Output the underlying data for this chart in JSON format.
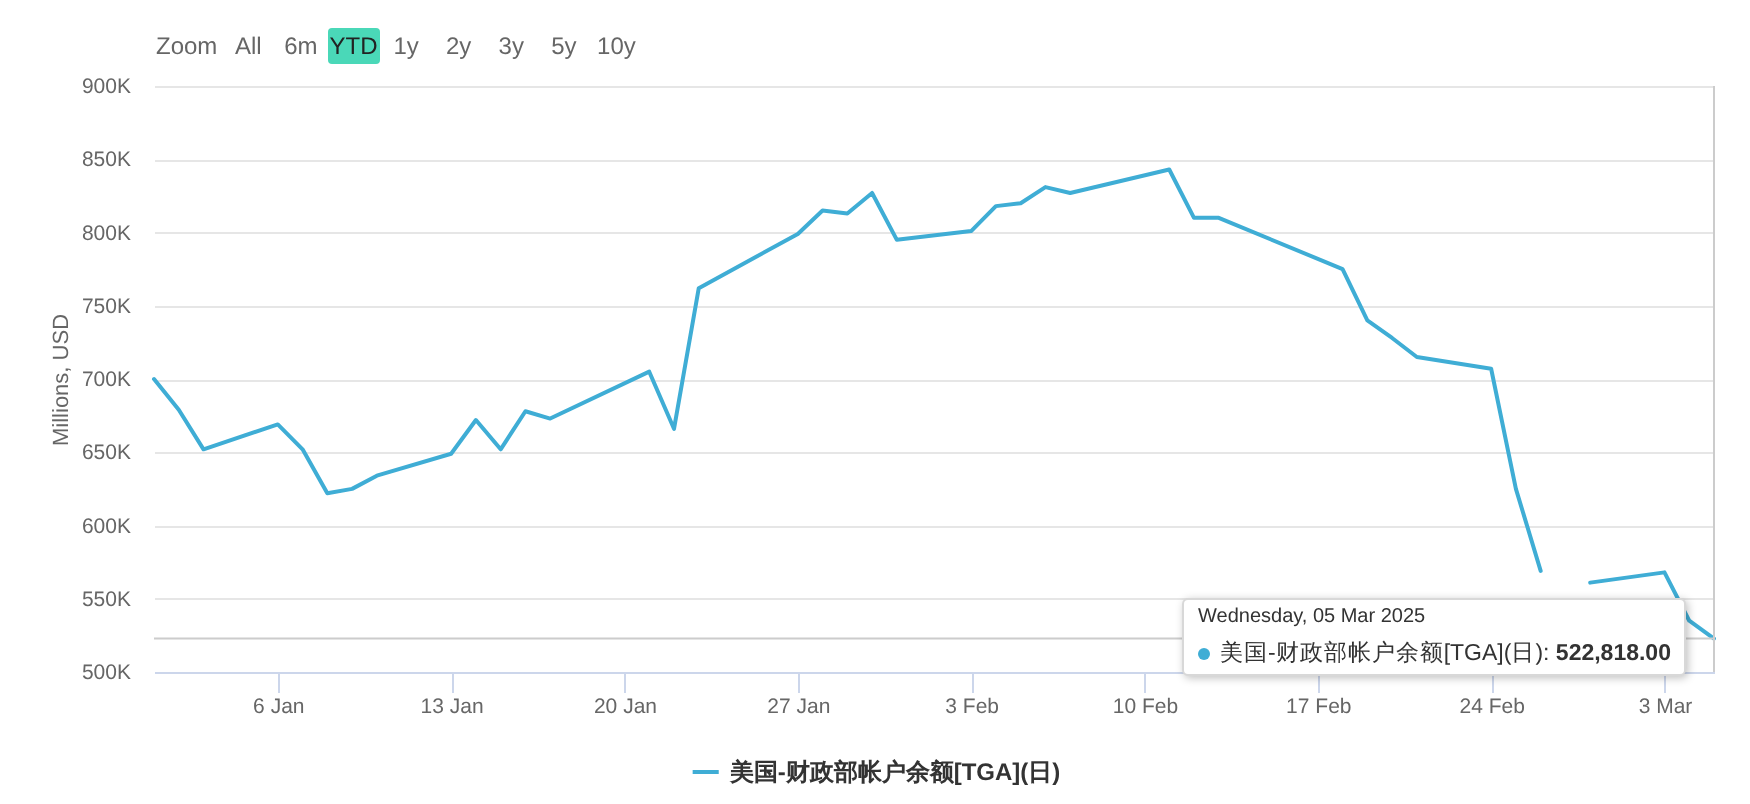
{
  "chart_data": {
    "type": "line",
    "ylabel": "Millions, USD",
    "x": [
      "2025-01-01",
      "2025-01-02",
      "2025-01-03",
      "2025-01-06",
      "2025-01-07",
      "2025-01-08",
      "2025-01-09",
      "2025-01-10",
      "2025-01-13",
      "2025-01-14",
      "2025-01-15",
      "2025-01-16",
      "2025-01-17",
      "2025-01-21",
      "2025-01-22",
      "2025-01-23",
      "2025-01-27",
      "2025-01-28",
      "2025-01-29",
      "2025-01-30",
      "2025-01-31",
      "2025-02-03",
      "2025-02-04",
      "2025-02-05",
      "2025-02-06",
      "2025-02-07",
      "2025-02-11",
      "2025-02-12",
      "2025-02-13",
      "2025-02-18",
      "2025-02-19",
      "2025-02-20",
      "2025-02-21",
      "2025-02-24",
      "2025-02-25",
      "2025-02-26",
      "2025-02-27",
      "2025-02-28",
      "2025-03-03",
      "2025-03-04",
      "2025-03-05"
    ],
    "series": [
      {
        "name": "美国-财政部帐户余额[TGA](日)",
        "color": "#3fadd5",
        "values": [
          700000,
          679000,
          652000,
          669000,
          652000,
          622000,
          625000,
          634000,
          649000,
          672000,
          652000,
          678000,
          673000,
          705000,
          666000,
          762000,
          799000,
          815000,
          813000,
          827000,
          795000,
          801000,
          818000,
          820000,
          831000,
          827000,
          843000,
          810000,
          810000,
          775000,
          740000,
          728000,
          715000,
          707000,
          625000,
          569000,
          null,
          561000,
          568000,
          535000,
          522818
        ]
      }
    ],
    "xlim": [
      "2025-01-01",
      "2025-03-05"
    ],
    "xticks": [
      {
        "value": "2025-01-06",
        "label": "6 Jan"
      },
      {
        "value": "2025-01-13",
        "label": "13 Jan"
      },
      {
        "value": "2025-01-20",
        "label": "20 Jan"
      },
      {
        "value": "2025-01-27",
        "label": "27 Jan"
      },
      {
        "value": "2025-02-03",
        "label": "3 Feb"
      },
      {
        "value": "2025-02-10",
        "label": "10 Feb"
      },
      {
        "value": "2025-02-17",
        "label": "17 Feb"
      },
      {
        "value": "2025-02-24",
        "label": "24 Feb"
      },
      {
        "value": "2025-03-03",
        "label": "3 Mar"
      }
    ],
    "ylim": [
      500000,
      900000
    ],
    "yticks": [
      {
        "value": 500000,
        "label": "500K"
      },
      {
        "value": 550000,
        "label": "550K"
      },
      {
        "value": 600000,
        "label": "600K"
      },
      {
        "value": 650000,
        "label": "650K"
      },
      {
        "value": 700000,
        "label": "700K"
      },
      {
        "value": 750000,
        "label": "750K"
      },
      {
        "value": 800000,
        "label": "800K"
      },
      {
        "value": 850000,
        "label": "850K"
      },
      {
        "value": 900000,
        "label": "900K"
      }
    ],
    "grid": "y",
    "legend": "bottom",
    "ref_lines": [
      {
        "axis": "x",
        "value": "2025-03-05",
        "color": "#cccccc"
      },
      {
        "axis": "y",
        "value": 522818,
        "color": "#cccccc"
      }
    ],
    "annotations": [
      "Zoom",
      "All",
      "6m",
      "YTD",
      "1y",
      "2y",
      "3y",
      "5y",
      "10y",
      {
        "text": "Wednesday, 05 Mar 2025\n美国-财政部帐户余额[TGA](日): 522,818.00",
        "x": "2025-03-05",
        "y": 522818
      }
    ]
  }
}
